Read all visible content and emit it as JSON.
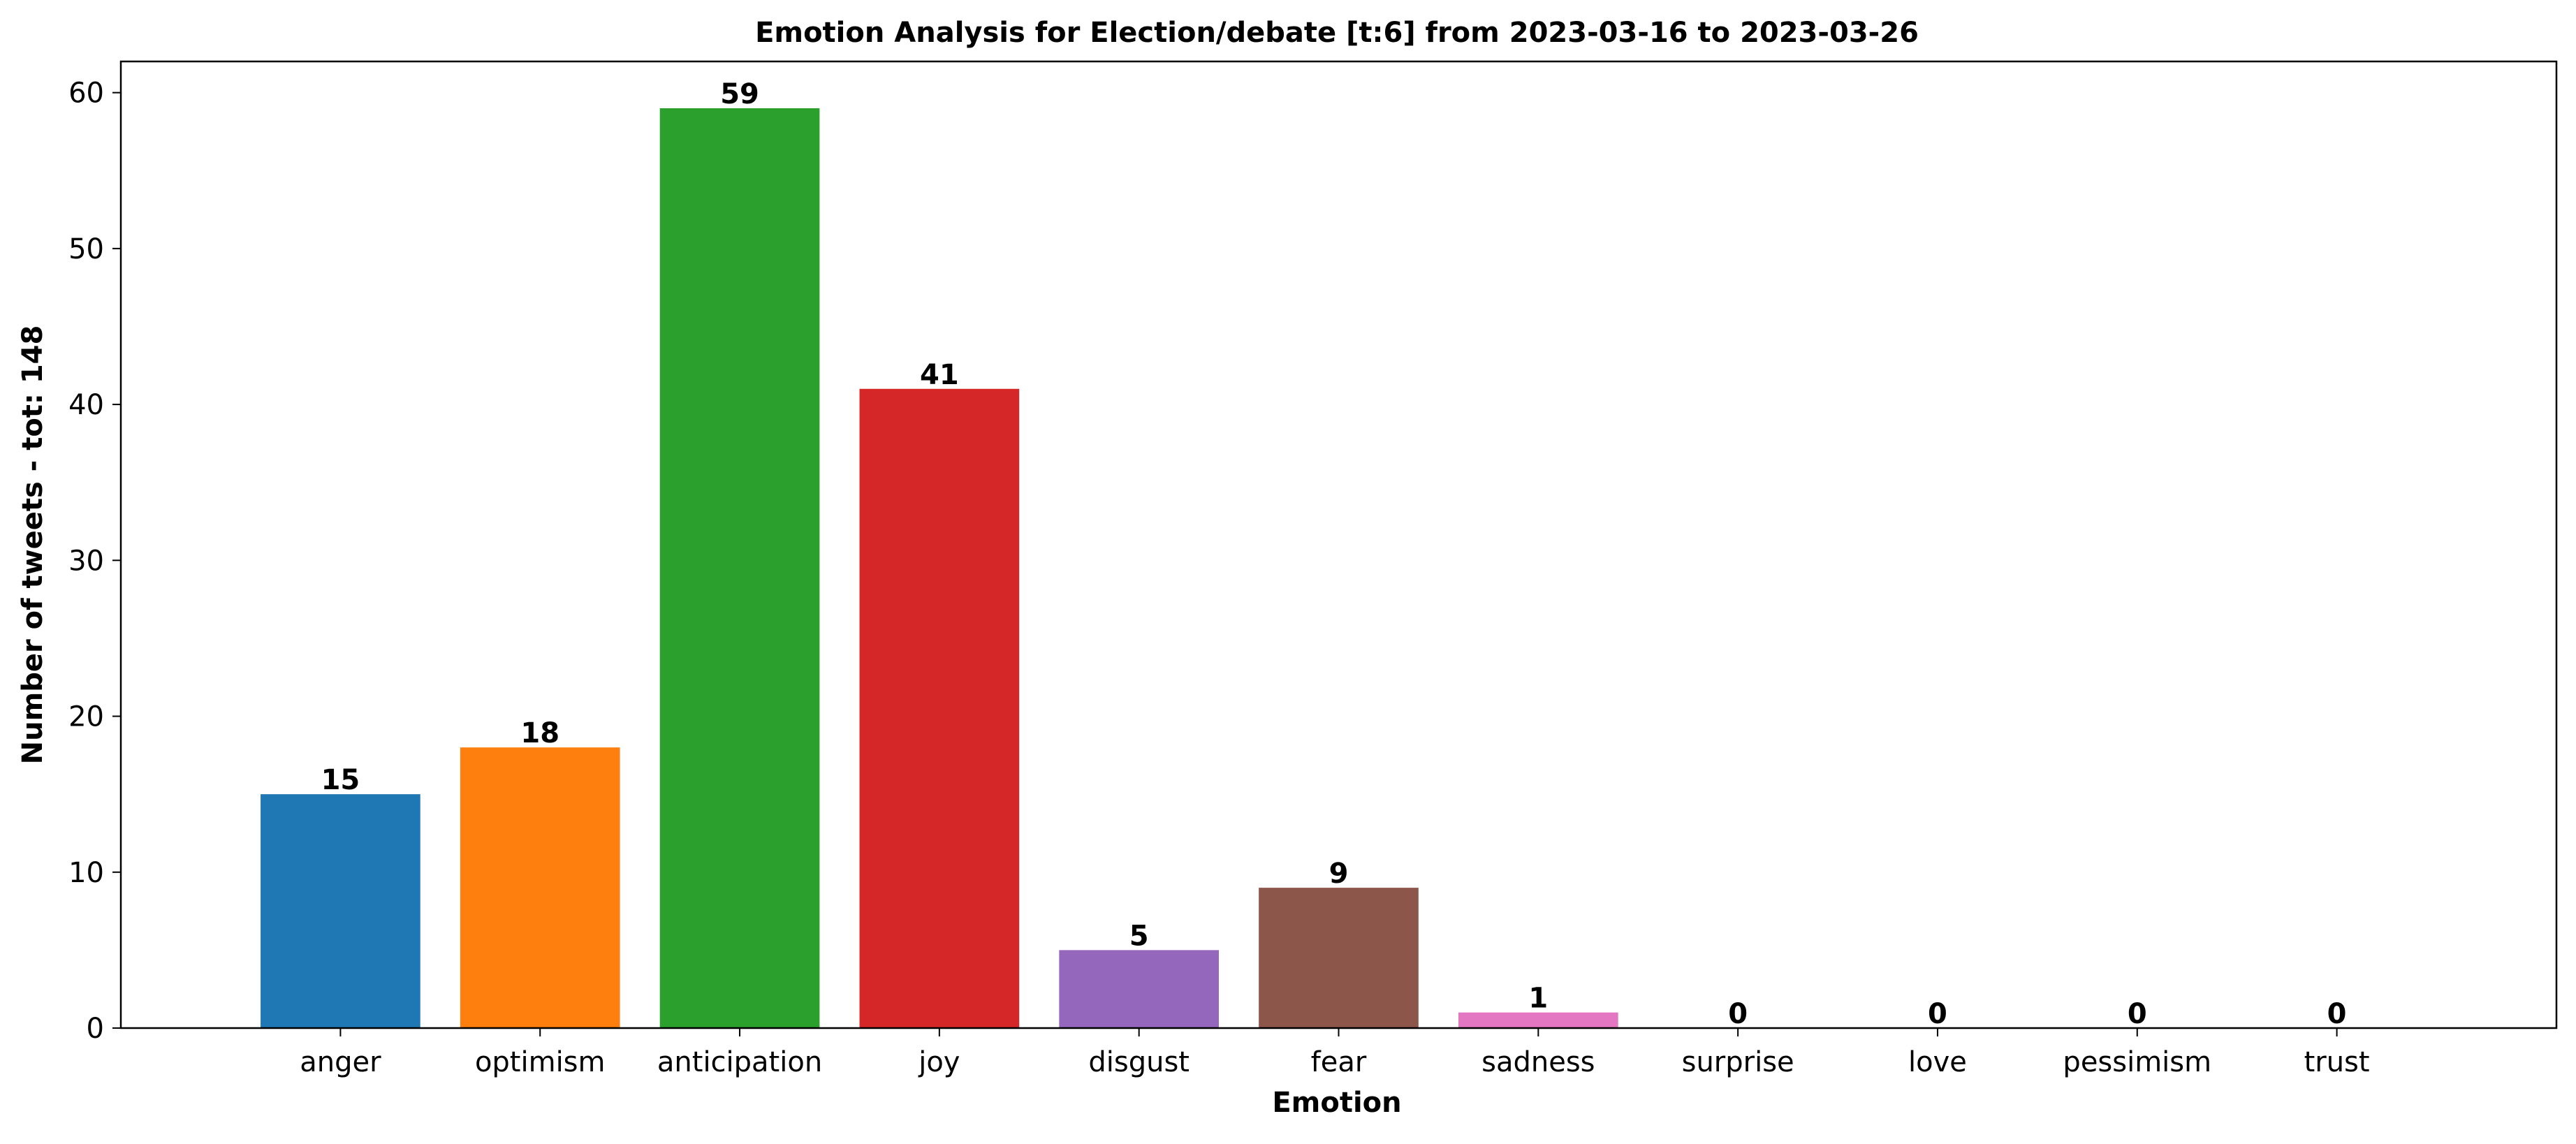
{
  "chart_data": {
    "type": "bar",
    "title": "Emotion Analysis for Election/debate [t:6] from 2023-03-16 to 2023-03-26",
    "xlabel": "Emotion",
    "ylabel": "Number of tweets - tot: 148",
    "categories": [
      "anger",
      "optimism",
      "anticipation",
      "joy",
      "disgust",
      "fear",
      "sadness",
      "surprise",
      "love",
      "pessimism",
      "trust"
    ],
    "values": [
      15,
      18,
      59,
      41,
      5,
      9,
      1,
      0,
      0,
      0,
      0
    ],
    "colors": [
      "#1f77b4",
      "#ff7f0e",
      "#2ca02c",
      "#d62728",
      "#9467bd",
      "#8c564b",
      "#e377c2",
      "#7f7f7f",
      "#bcbd22",
      "#17becf",
      "#1f77b4"
    ],
    "ylim": [
      0,
      62
    ],
    "yticks": [
      0,
      10,
      20,
      30,
      40,
      50,
      60
    ],
    "grid": false,
    "legend": false
  }
}
